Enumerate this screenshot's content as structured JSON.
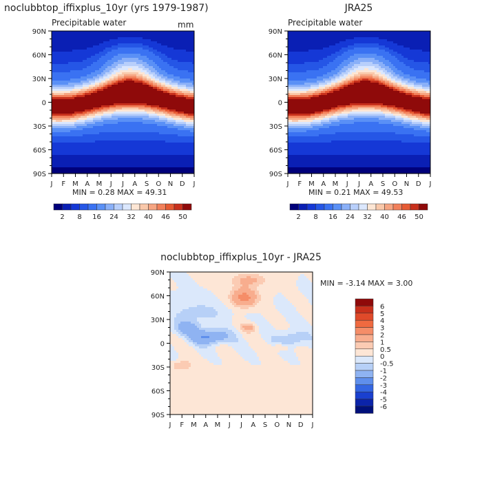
{
  "chart_data": [
    {
      "type": "heatmap",
      "panel": "top-left",
      "title": "noclubbtop_iffixplus_10yr (yrs 1979-1987)",
      "subtitle": "Precipitable water",
      "units": "mm",
      "x_ticks": [
        "J",
        "F",
        "M",
        "A",
        "M",
        "J",
        "J",
        "A",
        "S",
        "O",
        "N",
        "D",
        "J"
      ],
      "y_ticks": [
        "90N",
        "60N",
        "30N",
        "0",
        "30S",
        "60S",
        "90S"
      ],
      "ylim": [
        -90,
        90
      ],
      "stats": "MIN =    0.28 MAX =   49.31",
      "legend": {
        "labels": [
          "2",
          "8",
          "16",
          "24",
          "32",
          "40",
          "46",
          "50"
        ],
        "colors": [
          "#00007a",
          "#0a1fb4",
          "#1538d6",
          "#2556e6",
          "#3a72f2",
          "#5a90f6",
          "#8ab0f8",
          "#b8cffb",
          "#dbe7fd",
          "#fde6d4",
          "#f9c8aa",
          "#f6a582",
          "#f2805a",
          "#e65a33",
          "#c8301c",
          "#8f0a0a"
        ]
      }
    },
    {
      "type": "heatmap",
      "panel": "top-right",
      "title": "JRA25",
      "subtitle": "Precipitable water",
      "units": "",
      "x_ticks": [
        "J",
        "F",
        "M",
        "A",
        "M",
        "J",
        "J",
        "A",
        "S",
        "O",
        "N",
        "D",
        "J"
      ],
      "y_ticks": [
        "90N",
        "60N",
        "30N",
        "0",
        "30S",
        "60S",
        "90S"
      ],
      "ylim": [
        -90,
        90
      ],
      "stats": "MIN =    0.21 MAX =   49.53",
      "legend": {
        "labels": [
          "2",
          "8",
          "16",
          "24",
          "32",
          "40",
          "46",
          "50"
        ],
        "colors": [
          "#00007a",
          "#0a1fb4",
          "#1538d6",
          "#2556e6",
          "#3a72f2",
          "#5a90f6",
          "#8ab0f8",
          "#b8cffb",
          "#dbe7fd",
          "#fde6d4",
          "#f9c8aa",
          "#f6a582",
          "#f2805a",
          "#e65a33",
          "#c8301c",
          "#8f0a0a"
        ]
      }
    },
    {
      "type": "heatmap",
      "panel": "bottom-center",
      "title": "noclubbtop_iffixplus_10yr - JRA25",
      "x_ticks": [
        "J",
        "F",
        "M",
        "A",
        "M",
        "J",
        "J",
        "A",
        "S",
        "O",
        "N",
        "D",
        "J"
      ],
      "y_ticks": [
        "90N",
        "60N",
        "30N",
        "0",
        "30S",
        "60S",
        "90S"
      ],
      "ylim": [
        -90,
        90
      ],
      "stats": "MIN =   -3.14 MAX =    3.00",
      "legend": {
        "labels": [
          "6",
          "5",
          "4",
          "3",
          "2",
          "1",
          "0.5",
          "0",
          "-0.5",
          "-1",
          "-2",
          "-3",
          "-4",
          "-5",
          "-6"
        ],
        "colors": [
          "#8f0a0a",
          "#c8301c",
          "#e04a2a",
          "#f06a40",
          "#f58d68",
          "#f8ad8e",
          "#fbcbb3",
          "#fde6d6",
          "#dbe8fb",
          "#b7d0f7",
          "#8fb3f2",
          "#5f8fec",
          "#3466e2",
          "#1a40cf",
          "#0b24aa",
          "#00107a"
        ]
      }
    }
  ]
}
